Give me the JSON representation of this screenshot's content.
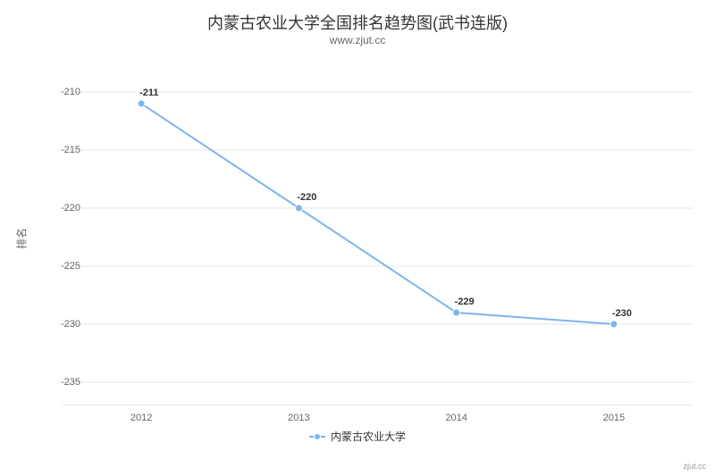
{
  "chart": {
    "type": "line",
    "title": "内蒙古农业大学全国排名趋势图(武书连版)",
    "subtitle": "www.zjut.cc",
    "ylabel": "排名",
    "credit": "zjut.cc",
    "background_color": "#ffffff",
    "grid_color": "#e6e6e6",
    "axis_line_color": "#c0d0e0",
    "title_fontsize": 18,
    "subtitle_fontsize": 12,
    "label_fontsize": 12,
    "tick_fontsize": 11,
    "datalabel_fontsize": 11,
    "x": {
      "categories": [
        "2012",
        "2013",
        "2014",
        "2015"
      ]
    },
    "y": {
      "lim": [
        -237,
        -207
      ],
      "ticks": [
        -210,
        -215,
        -220,
        -225,
        -230,
        -235
      ],
      "tick_labels": [
        "-210",
        "-215",
        "-220",
        "-225",
        "-230",
        "-235"
      ]
    },
    "series": [
      {
        "name": "内蒙古农业大学",
        "color": "#7cb5ec",
        "line_width": 2,
        "marker": "circle",
        "marker_radius": 4,
        "values": [
          -211,
          -220,
          -229,
          -230
        ],
        "data_labels": [
          "-211",
          "-220",
          "-229",
          "-230"
        ]
      }
    ],
    "legend": {
      "position": "bottom"
    }
  }
}
